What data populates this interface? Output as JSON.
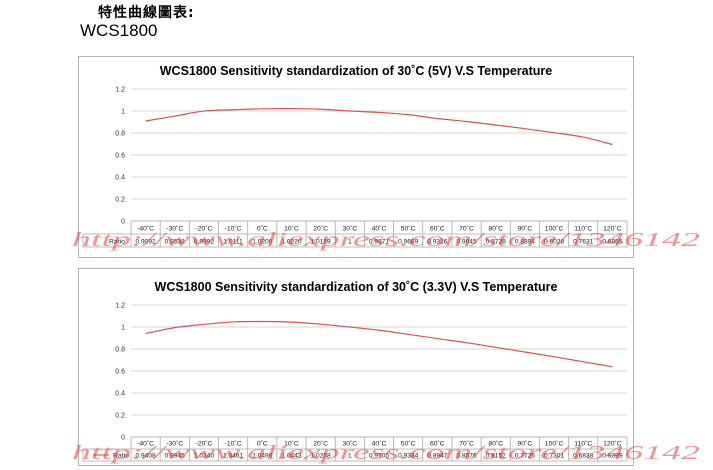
{
  "header": {
    "title_cn": "特性曲線圖表:",
    "model": "WCS1800"
  },
  "watermark": "http://www.aliexpress.com/store/1346142",
  "colors": {
    "line": "#d9534f",
    "grid": "#c9c9c9",
    "table": "#a8a8a8",
    "watermark": "#e03c3c"
  },
  "chart_data": [
    {
      "type": "line",
      "title": "WCS1800 Sensitivity standardization of 30˚C (5V) V.S Temperature",
      "categories": [
        "-40˚C",
        "-30˚C",
        "-20˚C",
        "-10˚C",
        "0˚C",
        "10˚C",
        "20˚C",
        "30˚C",
        "40˚C",
        "50˚C",
        "60˚C",
        "70˚C",
        "80˚C",
        "90˚C",
        "100˚C",
        "110˚C",
        "120˚C"
      ],
      "ylim": [
        0,
        1.2
      ],
      "y_tick_labels": [
        "0",
        "0.2",
        "0.4",
        "0.6",
        "0.8",
        "1",
        "1.2"
      ],
      "y_ticks": [
        0,
        0.2,
        0.4,
        0.6,
        0.8,
        1,
        1.2
      ],
      "grid": true,
      "legend": "table-left",
      "series": [
        {
          "name": "Ratio",
          "values": [
            0.9092,
            0.9538,
            0.9992,
            1.0111,
            1.02,
            1.022,
            1.0159,
            1,
            0.9871,
            0.9669,
            0.9316,
            0.9045,
            0.8728,
            0.8394,
            0.8028,
            0.7631,
            0.6955
          ],
          "labels": [
            "0.9092",
            "0.9538",
            "0.9992",
            "1.0111",
            "1.0200",
            "1.0220",
            "1.0159",
            "1",
            "0.9871",
            "0.9669",
            "0.9316",
            "0.9045",
            "0.8728",
            "0.8394",
            "0.8028",
            "0.7631",
            "0.6955"
          ]
        }
      ]
    },
    {
      "type": "line",
      "title": "WCS1800 Sensitivity standardization of 30˚C (3.3V) V.S Temperature",
      "categories": [
        "-40˚C",
        "-30˚C",
        "-20˚C",
        "-10˚C",
        "0˚C",
        "10˚C",
        "20˚C",
        "30˚C",
        "40˚C",
        "50˚C",
        "60˚C",
        "70˚C",
        "80˚C",
        "90˚C",
        "100˚C",
        "110˚C",
        "120˚C"
      ],
      "ylim": [
        0,
        1.2
      ],
      "y_tick_labels": [
        "0",
        "0.2",
        "0.4",
        "0.6",
        "0.8",
        "1",
        "1.2"
      ],
      "y_ticks": [
        0,
        0.2,
        0.4,
        0.6,
        0.8,
        1,
        1.2
      ],
      "grid": true,
      "legend": "table-left",
      "series": [
        {
          "name": "Ratio",
          "values": [
            0.9408,
            0.9945,
            1.024,
            1.0461,
            1.0498,
            1.0443,
            1.0258,
            1,
            0.9705,
            0.9334,
            0.8947,
            0.8576,
            0.8152,
            0.7726,
            0.7301,
            0.6838,
            0.6395
          ],
          "labels": [
            "0.9408",
            "0.9945",
            "1.0240",
            "1.0461",
            "1.0498",
            "1.0443",
            "1.0258",
            "1",
            "0.9705",
            "0.9334",
            "0.8947",
            "0.8576",
            "0.8152",
            "0.7726",
            "0.7301",
            "0.6838",
            "0.6395"
          ]
        }
      ]
    }
  ]
}
